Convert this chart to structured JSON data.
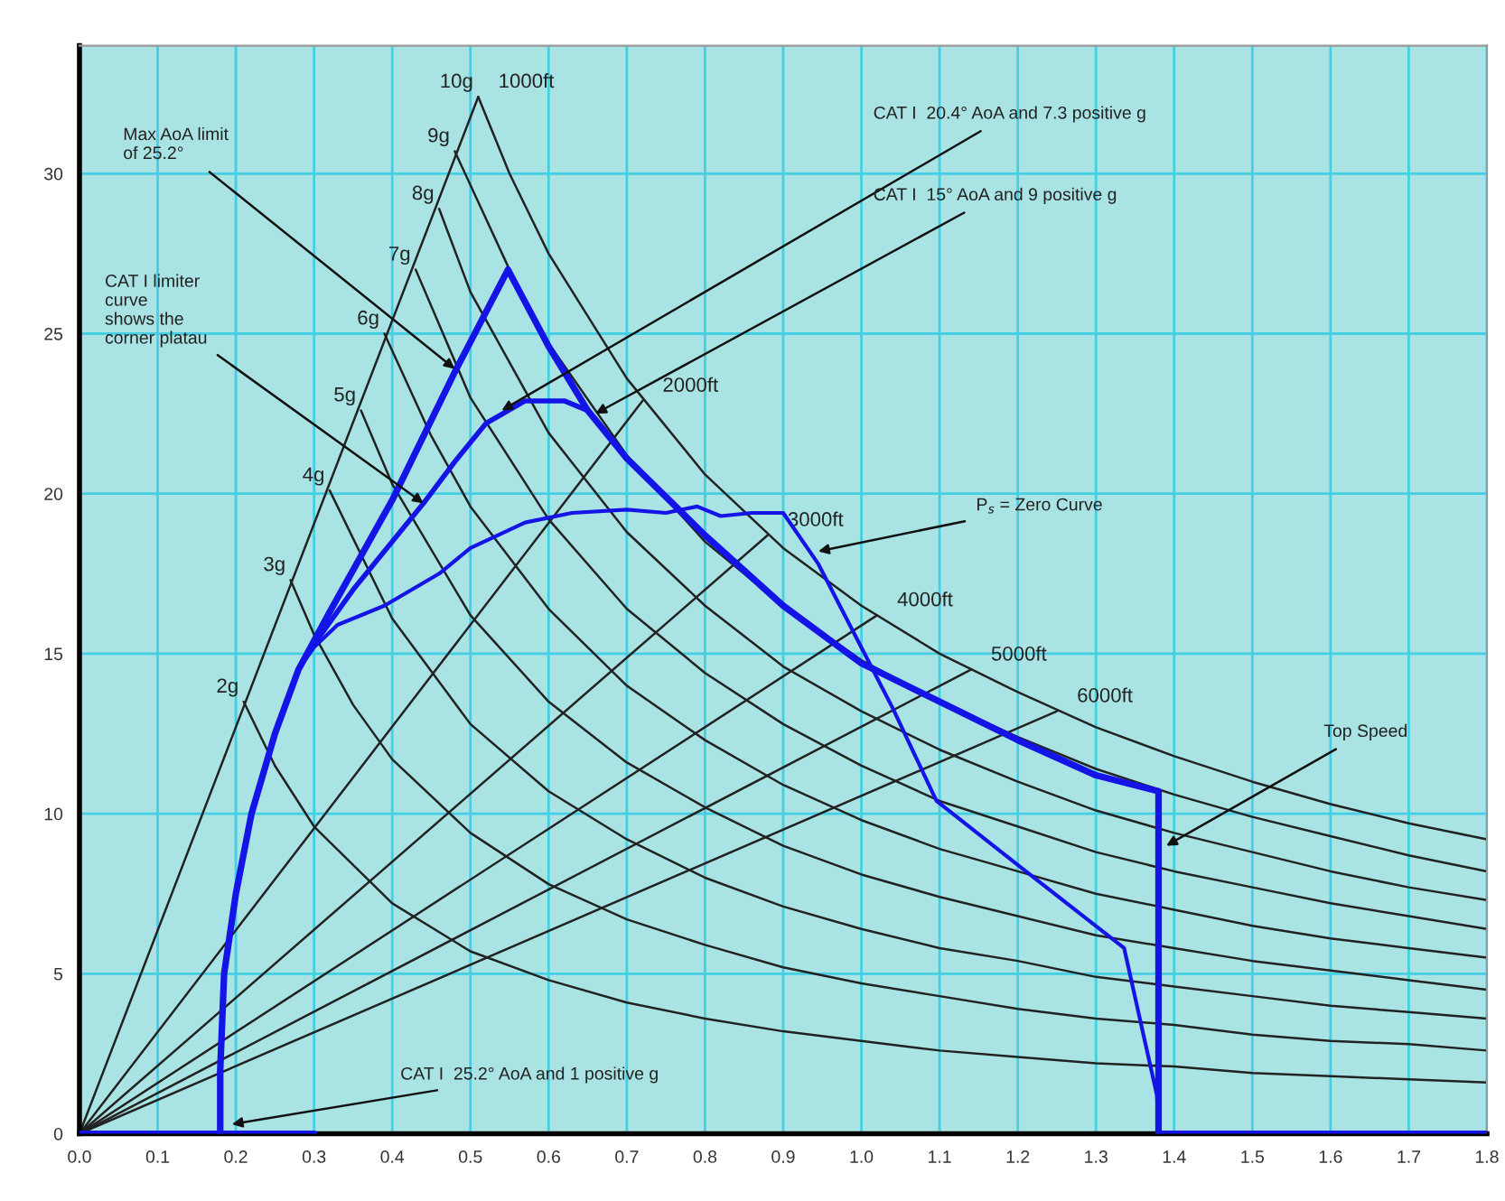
{
  "chart_data": {
    "type": "line",
    "xlim": [
      0,
      1.8
    ],
    "ylim": [
      0,
      34
    ],
    "xticks": [
      {
        "value": 0,
        "label": "0.0"
      },
      0.1,
      0.2,
      0.3,
      0.4,
      0.5,
      0.6,
      0.7,
      0.8,
      0.9,
      {
        "value": 1,
        "label": "1.0"
      },
      1.1,
      1.2,
      1.3,
      1.4,
      1.5,
      1.6,
      1.7,
      1.8
    ],
    "yticks": [
      0,
      5,
      10,
      15,
      20,
      25,
      30
    ],
    "grid": true,
    "legend": false,
    "series": [
      {
        "name": "2g",
        "color": "#222222",
        "x": [
          0.21,
          0.25,
          0.3,
          0.4,
          0.5,
          0.6,
          0.7,
          0.8,
          0.9,
          1.0,
          1.1,
          1.2,
          1.3,
          1.4,
          1.5,
          1.6,
          1.7,
          1.8
        ],
        "values": [
          13.5,
          11.5,
          9.6,
          7.2,
          5.7,
          4.8,
          4.1,
          3.6,
          3.2,
          2.9,
          2.6,
          2.4,
          2.2,
          2.1,
          1.9,
          1.8,
          1.7,
          1.6
        ]
      },
      {
        "name": "3g",
        "color": "#222222",
        "x": [
          0.27,
          0.3,
          0.35,
          0.4,
          0.5,
          0.6,
          0.7,
          0.8,
          0.9,
          1.0,
          1.1,
          1.2,
          1.3,
          1.4,
          1.5,
          1.6,
          1.7,
          1.8
        ],
        "values": [
          17.3,
          15.6,
          13.4,
          11.7,
          9.4,
          7.8,
          6.7,
          5.9,
          5.2,
          4.7,
          4.3,
          3.9,
          3.6,
          3.4,
          3.1,
          2.9,
          2.8,
          2.6
        ]
      },
      {
        "name": "4g",
        "color": "#222222",
        "x": [
          0.32,
          0.4,
          0.5,
          0.6,
          0.7,
          0.8,
          0.9,
          1.0,
          1.1,
          1.2,
          1.3,
          1.4,
          1.5,
          1.6,
          1.7,
          1.8
        ],
        "values": [
          20.1,
          16.1,
          12.8,
          10.7,
          9.2,
          8.0,
          7.1,
          6.4,
          5.8,
          5.4,
          4.9,
          4.6,
          4.3,
          4.0,
          3.8,
          3.6
        ]
      },
      {
        "name": "5g",
        "color": "#222222",
        "x": [
          0.36,
          0.4,
          0.5,
          0.6,
          0.7,
          0.8,
          0.9,
          1.0,
          1.1,
          1.2,
          1.3,
          1.4,
          1.5,
          1.6,
          1.7,
          1.8
        ],
        "values": [
          22.6,
          20.3,
          16.2,
          13.5,
          11.6,
          10.2,
          9.0,
          8.1,
          7.4,
          6.8,
          6.2,
          5.8,
          5.4,
          5.1,
          4.8,
          4.5
        ]
      },
      {
        "name": "6g",
        "color": "#222222",
        "x": [
          0.39,
          0.45,
          0.5,
          0.6,
          0.7,
          0.8,
          0.9,
          1.0,
          1.1,
          1.2,
          1.3,
          1.4,
          1.5,
          1.6,
          1.7,
          1.8
        ],
        "values": [
          25.0,
          21.8,
          19.6,
          16.4,
          14.0,
          12.3,
          10.9,
          9.8,
          8.9,
          8.2,
          7.5,
          7.0,
          6.5,
          6.1,
          5.8,
          5.5
        ]
      },
      {
        "name": "7g",
        "color": "#222222",
        "x": [
          0.43,
          0.5,
          0.6,
          0.7,
          0.8,
          0.9,
          1.0,
          1.1,
          1.2,
          1.3,
          1.4,
          1.5,
          1.6,
          1.7,
          1.8
        ],
        "values": [
          27.0,
          23.0,
          19.2,
          16.4,
          14.4,
          12.8,
          11.5,
          10.4,
          9.6,
          8.8,
          8.2,
          7.7,
          7.2,
          6.8,
          6.4
        ]
      },
      {
        "name": "8g",
        "color": "#222222",
        "x": [
          0.46,
          0.5,
          0.6,
          0.7,
          0.8,
          0.9,
          1.0,
          1.1,
          1.2,
          1.3,
          1.4,
          1.5,
          1.6,
          1.7,
          1.8
        ],
        "values": [
          28.9,
          26.3,
          21.9,
          18.8,
          16.5,
          14.6,
          13.2,
          12.0,
          11.0,
          10.1,
          9.4,
          8.8,
          8.2,
          7.7,
          7.3
        ]
      },
      {
        "name": "9g",
        "color": "#222222",
        "x": [
          0.48,
          0.55,
          0.6,
          0.7,
          0.8,
          0.9,
          1.0,
          1.1,
          1.2,
          1.3,
          1.4,
          1.5,
          1.6,
          1.7,
          1.8
        ],
        "values": [
          30.7,
          27.0,
          24.7,
          21.2,
          18.5,
          16.5,
          14.8,
          13.5,
          12.4,
          11.4,
          10.6,
          9.9,
          9.3,
          8.7,
          8.2
        ]
      },
      {
        "name": "10g",
        "color": "#222222",
        "x": [
          0.51,
          0.55,
          0.6,
          0.7,
          0.8,
          0.9,
          1.0,
          1.1,
          1.2,
          1.3,
          1.4,
          1.5,
          1.6,
          1.7,
          1.8
        ],
        "values": [
          32.4,
          30.0,
          27.5,
          23.6,
          20.6,
          18.3,
          16.5,
          15.0,
          13.8,
          12.7,
          11.8,
          11.0,
          10.3,
          9.7,
          9.2
        ]
      },
      {
        "name": "1000ft",
        "color": "#222222",
        "x": [
          0,
          0.51
        ],
        "values": [
          0,
          32.4
        ]
      },
      {
        "name": "2000ft",
        "color": "#222222",
        "x": [
          0,
          0.72
        ],
        "values": [
          0,
          22.9
        ]
      },
      {
        "name": "3000ft",
        "color": "#222222",
        "x": [
          0,
          0.88
        ],
        "values": [
          0,
          18.7
        ]
      },
      {
        "name": "4000ft",
        "color": "#222222",
        "x": [
          0,
          1.02
        ],
        "values": [
          0,
          16.2
        ]
      },
      {
        "name": "5000ft",
        "color": "#222222",
        "x": [
          0,
          1.14
        ],
        "values": [
          0,
          14.5
        ]
      },
      {
        "name": "6000ft",
        "color": "#222222",
        "x": [
          0,
          1.25
        ],
        "values": [
          0,
          13.2
        ]
      },
      {
        "color": "#1414e6",
        "x": [
          0.18,
          0.18,
          0.185,
          0.2,
          0.22,
          0.25,
          0.28,
          0.32,
          0.4,
          0.48,
          0.548,
          0.6,
          0.65,
          0.7,
          0.8,
          0.9,
          1.0,
          1.1,
          1.2,
          1.3,
          1.38,
          1.38,
          1.8
        ],
        "values": [
          0,
          2,
          5,
          7.5,
          10,
          12.5,
          14.5,
          16.3,
          19.8,
          23.8,
          27.0,
          24.6,
          22.6,
          21.1,
          18.7,
          16.5,
          14.7,
          13.5,
          12.3,
          11.2,
          10.7,
          0,
          0
        ]
      },
      {
        "color": "#1414e6",
        "x": [
          0.28,
          0.3,
          0.35,
          0.4,
          0.44,
          0.48,
          0.52,
          0.57,
          0.62,
          0.65
        ],
        "values": [
          14.5,
          15.3,
          17.0,
          18.5,
          19.7,
          21.0,
          22.2,
          22.9,
          22.9,
          22.6
        ]
      },
      {
        "color": "#1414e6",
        "x": [
          0.28,
          0.3,
          0.33,
          0.39,
          0.46,
          0.5,
          0.57,
          0.63,
          0.7,
          0.75,
          0.79,
          0.82,
          0.86,
          0.9,
          0.945,
          1.04,
          1.096,
          1.2,
          1.336,
          1.378,
          1.38
        ],
        "values": [
          14.5,
          15.2,
          15.9,
          16.5,
          17.5,
          18.3,
          19.1,
          19.4,
          19.5,
          19.4,
          19.6,
          19.3,
          19.4,
          19.4,
          17.8,
          13.3,
          10.4,
          8.4,
          5.8,
          1.2,
          0
        ]
      },
      {
        "color": "#1414e6",
        "x": [
          0,
          0.3
        ],
        "values": [
          0,
          0
        ]
      }
    ],
    "annotations": [
      {
        "text": "Max AoA limit\nof 25.2°",
        "x": 0.48,
        "y": 23.9
      },
      {
        "text": "CAT I limiter\ncurve\nshows the\ncorner platau",
        "x": 0.44,
        "y": 19.7
      },
      {
        "text": "CAT I  20.4° AoA and 7.3 positive g",
        "x": 0.54,
        "y": 22.6
      },
      {
        "text": "CAT I  15° AoA and 9 positive g",
        "x": 0.66,
        "y": 22.5
      },
      {
        "text": "P$_{s}$ = Zero Curve",
        "x": 0.945,
        "y": 18.2
      },
      {
        "text": "Top Speed",
        "x": 1.39,
        "y": 9.0
      },
      {
        "text": "CAT I  25.2° AoA and 1 positive g",
        "x": 0.195,
        "y": 0.3
      }
    ]
  }
}
